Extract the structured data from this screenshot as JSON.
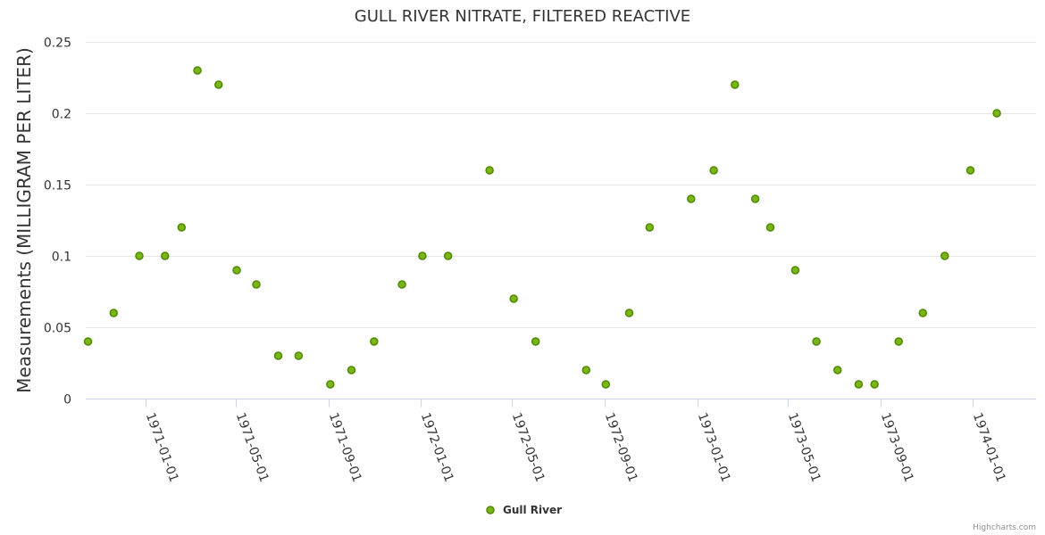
{
  "chart_data": {
    "type": "scatter",
    "title": "GULL RIVER NITRATE, FILTERED REACTIVE",
    "xlabel": "",
    "ylabel": "Measurements (MILLIGRAM PER LITER)",
    "ylim": [
      0,
      0.25
    ],
    "yticks": [
      0,
      0.05,
      0.1,
      0.15,
      0.2,
      0.25
    ],
    "ytick_labels": [
      "0",
      "0.05",
      "0.1",
      "0.15",
      "0.2",
      "0.25"
    ],
    "xlim": [
      "1970-10-14",
      "1974-03-26"
    ],
    "xticks": [
      "1971-01-01",
      "1971-05-01",
      "1971-09-01",
      "1972-01-01",
      "1972-05-01",
      "1972-09-01",
      "1973-01-01",
      "1973-05-01",
      "1973-09-01",
      "1974-01-01"
    ],
    "grid": true,
    "legend_position": "bottom-center",
    "series": [
      {
        "name": "Gull River",
        "color": "#7cb518",
        "points": [
          {
            "x": "1970-10-17",
            "y": 0.04
          },
          {
            "x": "1970-11-20",
            "y": 0.06
          },
          {
            "x": "1970-12-24",
            "y": 0.1
          },
          {
            "x": "1971-01-27",
            "y": 0.1
          },
          {
            "x": "1971-02-18",
            "y": 0.12
          },
          {
            "x": "1971-03-11",
            "y": 0.23
          },
          {
            "x": "1971-04-08",
            "y": 0.22
          },
          {
            "x": "1971-05-02",
            "y": 0.09
          },
          {
            "x": "1971-05-28",
            "y": 0.08
          },
          {
            "x": "1971-06-26",
            "y": 0.03
          },
          {
            "x": "1971-07-23",
            "y": 0.03
          },
          {
            "x": "1971-09-03",
            "y": 0.01
          },
          {
            "x": "1971-10-01",
            "y": 0.02
          },
          {
            "x": "1971-10-31",
            "y": 0.04
          },
          {
            "x": "1971-12-07",
            "y": 0.08
          },
          {
            "x": "1972-01-03",
            "y": 0.1
          },
          {
            "x": "1972-02-06",
            "y": 0.1
          },
          {
            "x": "1972-04-01",
            "y": 0.16
          },
          {
            "x": "1972-05-03",
            "y": 0.07
          },
          {
            "x": "1972-06-01",
            "y": 0.04
          },
          {
            "x": "1972-08-07",
            "y": 0.02
          },
          {
            "x": "1972-09-02",
            "y": 0.01
          },
          {
            "x": "1972-10-03",
            "y": 0.06
          },
          {
            "x": "1972-10-30",
            "y": 0.12
          },
          {
            "x": "1972-12-24",
            "y": 0.14
          },
          {
            "x": "1973-01-23",
            "y": 0.16
          },
          {
            "x": "1973-02-20",
            "y": 0.22
          },
          {
            "x": "1973-03-19",
            "y": 0.14
          },
          {
            "x": "1973-04-08",
            "y": 0.12
          },
          {
            "x": "1973-05-11",
            "y": 0.09
          },
          {
            "x": "1973-06-08",
            "y": 0.04
          },
          {
            "x": "1973-07-06",
            "y": 0.02
          },
          {
            "x": "1973-08-03",
            "y": 0.01
          },
          {
            "x": "1973-08-24",
            "y": 0.01
          },
          {
            "x": "1973-09-25",
            "y": 0.04
          },
          {
            "x": "1973-10-27",
            "y": 0.06
          },
          {
            "x": "1973-11-25",
            "y": 0.1
          },
          {
            "x": "1973-12-29",
            "y": 0.16
          },
          {
            "x": "1974-02-02",
            "y": 0.2
          }
        ]
      }
    ]
  },
  "credits": "Highcharts.com"
}
